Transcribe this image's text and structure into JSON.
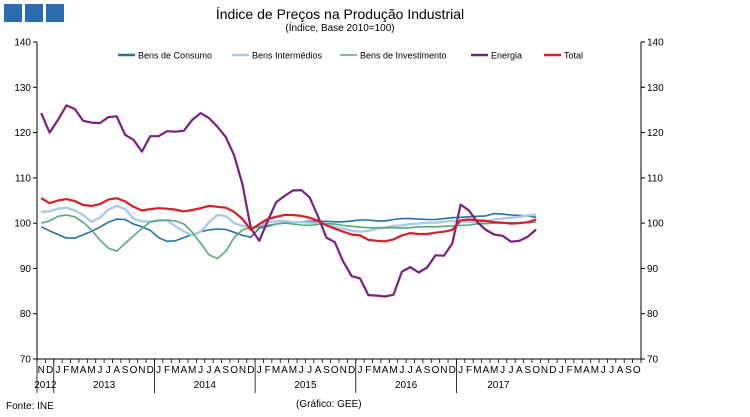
{
  "header": {
    "title": "Índice de Preços na Produção Industrial",
    "subtitle": "(Índice, Base 2010=100)"
  },
  "footer": {
    "source": "Fonte: INE",
    "credit": "(Gráfico: GEE)"
  },
  "colors": {
    "Bens de Consumo": "#2471a8",
    "Bens Intermédios": "#a9cbe8",
    "Bens de Investimento": "#55a97a",
    "Energia": "#7b1f7e",
    "Total": "#d41f26",
    "logo": "#2b6cb0"
  },
  "chart_data": {
    "type": "line",
    "title": "Índice de Preços na Produção Industrial",
    "subtitle": "(Índice, Base 2010=100)",
    "xlabel": "",
    "ylabel": "",
    "ylim": [
      70,
      140
    ],
    "yticks": [
      70,
      80,
      90,
      100,
      110,
      120,
      130,
      140
    ],
    "dual_y_axis": true,
    "grid": false,
    "legend_position": "top",
    "month_labels": [
      "N",
      "D",
      "J",
      "F",
      "M",
      "A",
      "M",
      "J",
      "J",
      "A",
      "S",
      "O",
      "N",
      "D",
      "J",
      "F",
      "M",
      "A",
      "M",
      "J",
      "J",
      "A",
      "S",
      "O",
      "N",
      "D",
      "J",
      "F",
      "M",
      "A",
      "M",
      "J",
      "J",
      "A",
      "S",
      "O",
      "N",
      "D",
      "J",
      "F",
      "M",
      "A",
      "M",
      "J",
      "J",
      "A",
      "S",
      "O",
      "N",
      "D",
      "J",
      "F",
      "M",
      "A",
      "M",
      "J",
      "J",
      "A",
      "S",
      "O",
      "N",
      "D",
      "J",
      "F",
      "M",
      "A",
      "M",
      "J",
      "J",
      "A",
      "S",
      "O"
    ],
    "year_labels": [
      {
        "label": "2012",
        "start": 0,
        "end": 1
      },
      {
        "label": "2013",
        "start": 2,
        "end": 13
      },
      {
        "label": "2014",
        "start": 14,
        "end": 25
      },
      {
        "label": "2015",
        "start": 26,
        "end": 37
      },
      {
        "label": "2016",
        "start": 38,
        "end": 49
      },
      {
        "label": "2017",
        "start": 50,
        "end": 59
      }
    ],
    "series": [
      {
        "name": "Bens de Consumo",
        "values": [
          99.2,
          98.3,
          97.5,
          96.7,
          96.7,
          97.4,
          98.2,
          99.1,
          100.2,
          100.9,
          100.8,
          99.8,
          99.2,
          98.4,
          96.8,
          96.0,
          96.1,
          96.8,
          97.5,
          98.1,
          98.5,
          98.7,
          98.6,
          98.0,
          97.3,
          96.9,
          98.9,
          99.3,
          99.8,
          100.0,
          100.2,
          100.3,
          100.4,
          100.4,
          100.4,
          100.3,
          100.3,
          100.5,
          100.7,
          100.7,
          100.5,
          100.5,
          100.8,
          101.0,
          101.0,
          100.9,
          100.8,
          100.8,
          101.0,
          101.2,
          101.3,
          101.4,
          101.5,
          101.6,
          102.1,
          102.0,
          101.8,
          101.7,
          101.6,
          101.3
        ]
      },
      {
        "name": "Bens Intermédios",
        "values": [
          102.5,
          102.6,
          103.2,
          103.4,
          102.8,
          101.8,
          100.3,
          101.2,
          103.0,
          103.8,
          103.1,
          101.0,
          100.4,
          100.3,
          100.6,
          100.6,
          99.3,
          98.2,
          97.3,
          98.1,
          100.2,
          101.8,
          101.6,
          100.0,
          99.4,
          99.0,
          99.4,
          100.2,
          100.4,
          100.5,
          100.2,
          100.2,
          100.1,
          100.0,
          99.8,
          99.2,
          98.8,
          98.3,
          98.1,
          98.3,
          98.8,
          99.0,
          99.4,
          99.5,
          99.8,
          99.9,
          100.1,
          100.1,
          100.3,
          100.5,
          100.4,
          100.3,
          100.1,
          100.4,
          100.8,
          101.0,
          101.2,
          101.4,
          101.7,
          101.9
        ]
      },
      {
        "name": "Bens de Investimento",
        "values": [
          100.0,
          100.5,
          101.5,
          101.8,
          101.4,
          100.2,
          98.5,
          96.3,
          94.5,
          93.8,
          95.5,
          97.2,
          98.8,
          100.3,
          100.6,
          100.7,
          100.5,
          99.8,
          98.0,
          95.6,
          93.0,
          92.2,
          93.8,
          96.8,
          98.5,
          99.0,
          99.2,
          99.5,
          99.8,
          100.0,
          99.8,
          99.6,
          99.5,
          99.7,
          99.9,
          99.8,
          99.5,
          99.3,
          99.1,
          99.0,
          99.0,
          99.0,
          99.0,
          98.9,
          99.0,
          99.2,
          99.2,
          99.2,
          99.3,
          99.4,
          99.5,
          99.6,
          99.8,
          99.9,
          100.0,
          100.0,
          100.1,
          100.1,
          100.1,
          100.2
        ]
      },
      {
        "name": "Energia",
        "values": [
          124.3,
          120.0,
          122.8,
          126.0,
          125.2,
          122.6,
          122.2,
          122.1,
          123.4,
          123.6,
          119.5,
          118.4,
          115.8,
          119.2,
          119.2,
          120.3,
          120.2,
          120.4,
          122.8,
          124.3,
          123.2,
          121.3,
          119.0,
          115.0,
          108.5,
          98.8,
          96.1,
          100.5,
          104.6,
          106.0,
          107.2,
          107.3,
          105.7,
          101.5,
          96.8,
          95.8,
          91.5,
          88.3,
          87.8,
          84.1,
          84.0,
          83.8,
          84.2,
          89.3,
          90.3,
          89.1,
          90.2,
          92.9,
          92.8,
          95.5,
          104.1,
          102.8,
          100.2,
          98.5,
          97.5,
          97.2,
          95.9,
          96.1,
          97.0,
          98.6
        ]
      },
      {
        "name": "Total",
        "values": [
          105.5,
          104.4,
          105.0,
          105.3,
          104.9,
          104.0,
          103.8,
          104.2,
          105.2,
          105.5,
          104.8,
          103.6,
          102.8,
          103.1,
          103.3,
          103.2,
          103.0,
          102.6,
          102.9,
          103.3,
          103.8,
          103.6,
          103.4,
          102.5,
          100.9,
          98.5,
          99.8,
          100.9,
          101.4,
          101.8,
          101.8,
          101.6,
          101.2,
          100.5,
          99.5,
          98.8,
          98.1,
          97.5,
          97.3,
          96.3,
          96.1,
          96.0,
          96.4,
          97.3,
          97.8,
          97.6,
          97.6,
          97.9,
          98.1,
          98.5,
          100.6,
          100.8,
          100.6,
          100.5,
          100.2,
          100.1,
          99.9,
          100.0,
          100.2,
          100.8
        ]
      }
    ]
  }
}
